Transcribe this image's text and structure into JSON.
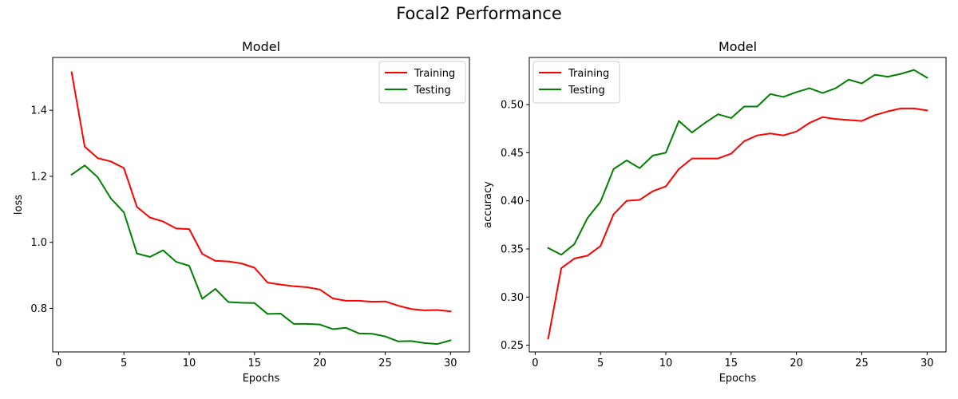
{
  "figure_title": "Focal2 Performance",
  "chart_data": [
    {
      "type": "line",
      "title": "Model",
      "xlabel": "Epochs",
      "ylabel": "loss",
      "xlim": [
        -0.45,
        31.45
      ],
      "ylim": [
        0.668,
        1.56
      ],
      "xticks": [
        0,
        5,
        10,
        15,
        20,
        25,
        30
      ],
      "yticks": [
        0.8,
        1.0,
        1.2,
        1.4
      ],
      "ytick_labels": [
        "0.8",
        "1.0",
        "1.2",
        "1.4"
      ],
      "legend_position": "upper right",
      "grid": false,
      "x": [
        1,
        2,
        3,
        4,
        5,
        6,
        7,
        8,
        9,
        10,
        11,
        12,
        13,
        14,
        15,
        16,
        17,
        18,
        19,
        20,
        21,
        22,
        23,
        24,
        25,
        26,
        27,
        28,
        29,
        30
      ],
      "series": [
        {
          "name": "Training",
          "color": "#ff0000",
          "values": [
            1.515,
            1.29,
            1.255,
            1.245,
            1.225,
            1.107,
            1.075,
            1.063,
            1.042,
            1.04,
            0.965,
            0.944,
            0.942,
            0.936,
            0.923,
            0.878,
            0.872,
            0.867,
            0.864,
            0.857,
            0.83,
            0.823,
            0.823,
            0.82,
            0.821,
            0.808,
            0.798,
            0.794,
            0.795,
            0.791
          ]
        },
        {
          "name": "Testing",
          "color": "#008000",
          "values": [
            1.205,
            1.233,
            1.197,
            1.133,
            1.091,
            0.966,
            0.956,
            0.976,
            0.941,
            0.929,
            0.829,
            0.859,
            0.819,
            0.817,
            0.816,
            0.783,
            0.784,
            0.753,
            0.753,
            0.751,
            0.737,
            0.741,
            0.724,
            0.723,
            0.715,
            0.7,
            0.701,
            0.695,
            0.692,
            0.703
          ]
        }
      ]
    },
    {
      "type": "line",
      "title": "Model",
      "xlabel": "Epochs",
      "ylabel": "accuracy",
      "xlim": [
        -0.45,
        31.45
      ],
      "ylim": [
        0.243,
        0.549
      ],
      "xticks": [
        0,
        5,
        10,
        15,
        20,
        25,
        30
      ],
      "yticks": [
        0.25,
        0.3,
        0.35,
        0.4,
        0.45,
        0.5
      ],
      "ytick_labels": [
        "0.25",
        "0.30",
        "0.35",
        "0.40",
        "0.45",
        "0.50"
      ],
      "legend_position": "upper left",
      "grid": false,
      "x": [
        1,
        2,
        3,
        4,
        5,
        6,
        7,
        8,
        9,
        10,
        11,
        12,
        13,
        14,
        15,
        16,
        17,
        18,
        19,
        20,
        21,
        22,
        23,
        24,
        25,
        26,
        27,
        28,
        29,
        30
      ],
      "series": [
        {
          "name": "Training",
          "color": "#ff0000",
          "values": [
            0.257,
            0.33,
            0.34,
            0.343,
            0.353,
            0.386,
            0.4,
            0.401,
            0.41,
            0.415,
            0.433,
            0.444,
            0.444,
            0.444,
            0.449,
            0.462,
            0.468,
            0.47,
            0.468,
            0.472,
            0.481,
            0.487,
            0.485,
            0.484,
            0.483,
            0.489,
            0.493,
            0.496,
            0.496,
            0.494
          ]
        },
        {
          "name": "Testing",
          "color": "#008000",
          "values": [
            0.351,
            0.344,
            0.355,
            0.382,
            0.399,
            0.433,
            0.442,
            0.434,
            0.447,
            0.45,
            0.483,
            0.471,
            0.481,
            0.49,
            0.486,
            0.498,
            0.498,
            0.511,
            0.508,
            0.513,
            0.517,
            0.512,
            0.517,
            0.526,
            0.522,
            0.531,
            0.529,
            0.532,
            0.536,
            0.528
          ]
        }
      ]
    }
  ]
}
